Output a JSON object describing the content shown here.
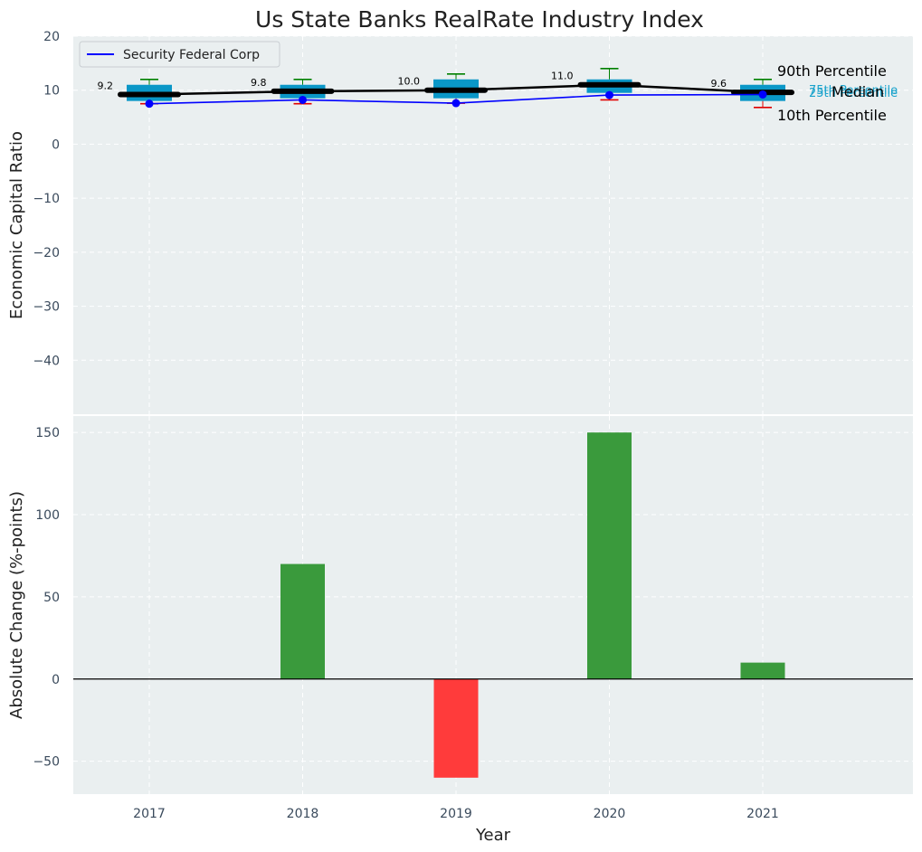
{
  "chart_data": [
    {
      "type": "box",
      "title": "Us State Banks RealRate Industry Index",
      "xlabel": "",
      "ylabel": "Economic Capital Ratio",
      "ylim": [
        -50,
        20
      ],
      "yticks": [
        -40,
        -30,
        -20,
        -10,
        0,
        10,
        20
      ],
      "categories": [
        "2017",
        "2018",
        "2019",
        "2020",
        "2021"
      ],
      "percentiles": {
        "p10": [
          7.5,
          7.5,
          7.6,
          8.2,
          6.8
        ],
        "p25": [
          8.0,
          8.5,
          8.5,
          9.5,
          8.0
        ],
        "median": [
          9.2,
          9.8,
          10.0,
          11.0,
          9.6
        ],
        "p75": [
          11.0,
          11.0,
          12.0,
          12.0,
          11.0
        ],
        "p90": [
          12.0,
          12.0,
          13.0,
          14.0,
          12.0
        ]
      },
      "median_labels": [
        "9.2",
        "9.8",
        "10.0",
        "11.0",
        "9.6"
      ],
      "series": [
        {
          "name": "Security Federal Corp",
          "values": [
            7.5,
            8.2,
            7.6,
            9.1,
            9.2
          ]
        }
      ],
      "legend": {
        "entries": [
          "Security Federal Corp"
        ],
        "position": "top-left"
      },
      "annotations": {
        "p90": "90th Percentile",
        "p75": "75th Percentile",
        "median": "Median",
        "p25": "25th Percentile",
        "p10": "10th Percentile"
      },
      "colors": {
        "box": "#0a97c7",
        "median": "#000000",
        "company": "#0000ff",
        "upper_whisker": "#008000",
        "lower_whisker": "#e00000",
        "annotation_quartile": "#1aa3cc"
      },
      "grid": true
    },
    {
      "type": "bar",
      "xlabel": "Year",
      "ylabel": "Absolute Change (%-points)",
      "ylim": [
        -70,
        160
      ],
      "yticks": [
        -50,
        0,
        50,
        100,
        150
      ],
      "categories": [
        "2017",
        "2018",
        "2019",
        "2020",
        "2021"
      ],
      "values": [
        0,
        70,
        -60,
        150,
        10
      ],
      "colors": {
        "positive": "#3a9a3c",
        "negative": "#ff3b3b"
      },
      "grid": true
    }
  ]
}
